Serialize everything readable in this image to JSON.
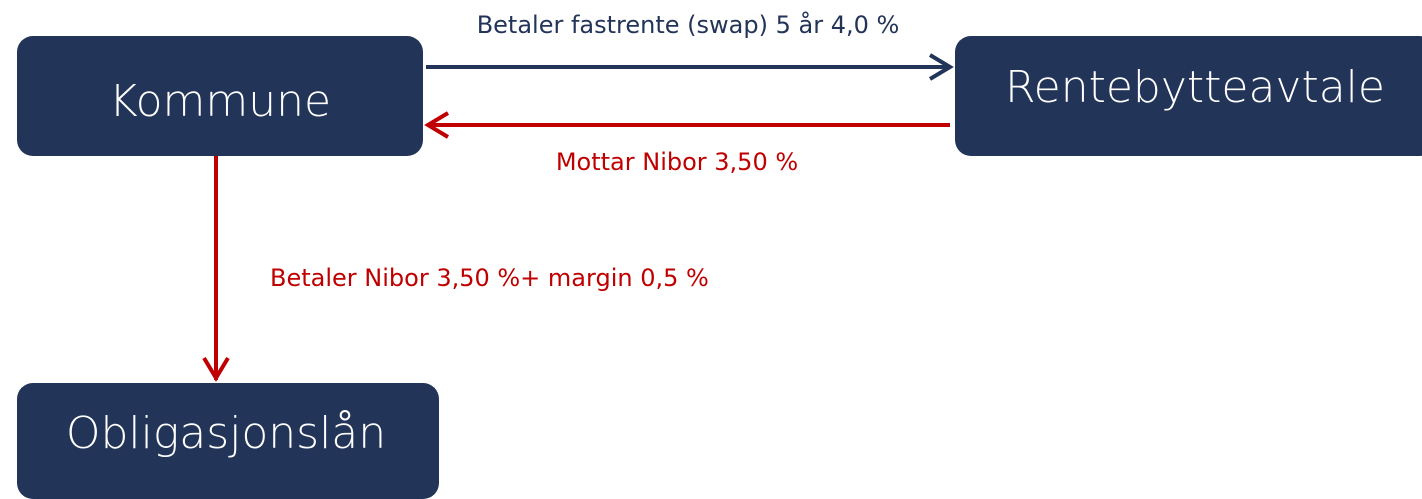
{
  "nodes": [
    {
      "label": "Kommune"
    },
    {
      "label": "Rentebytteavtale"
    },
    {
      "label": "Obligasjonslån"
    }
  ],
  "edges": [
    {
      "label": "Betaler fastrente (swap) 5 år 4,0 %"
    },
    {
      "label": "Mottar Nibor 3,50 %"
    },
    {
      "label": "Betaler Nibor 3,50 %+ margin 0,5 %"
    }
  ]
}
